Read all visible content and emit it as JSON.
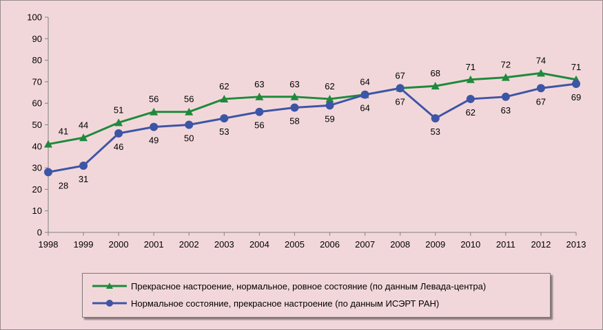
{
  "chart_data": {
    "type": "line",
    "x": [
      "1998",
      "1999",
      "2000",
      "2001",
      "2002",
      "2003",
      "2004",
      "2005",
      "2006",
      "2007",
      "2008",
      "2009",
      "2010",
      "2011",
      "2012",
      "2013"
    ],
    "ylim": [
      0,
      100
    ],
    "yticks": [
      "0",
      "10",
      "20",
      "30",
      "40",
      "50",
      "60",
      "70",
      "80",
      "90",
      "100"
    ],
    "grid": false,
    "legend_position": "bottom",
    "series": [
      {
        "name": "Прекрасное настроение, нормальное, ровное состояние (по данным Левада-центра)",
        "color": "#1e8a3c",
        "marker": "triangle",
        "values": [
          41,
          44,
          51,
          56,
          56,
          62,
          63,
          63,
          62,
          64,
          67,
          68,
          71,
          72,
          74,
          71
        ],
        "labels": [
          "41",
          "44",
          "51",
          "56",
          "56",
          "62",
          "63",
          "63",
          "62",
          "64",
          "67",
          "68",
          "71",
          "72",
          "74",
          "71"
        ],
        "label_position": "above"
      },
      {
        "name": "Нормальное состояние, прекрасное настроение (по данным ИСЭРТ РАН)",
        "color": "#3d55a6",
        "marker": "circle",
        "values": [
          28,
          31,
          46,
          49,
          50,
          53,
          56,
          58,
          59,
          64,
          67,
          53,
          62,
          63,
          67,
          69
        ],
        "labels": [
          "28",
          "31",
          "46",
          "49",
          "50",
          "53",
          "56",
          "58",
          "59",
          "64",
          "67",
          "53",
          "62",
          "63",
          "67",
          "69"
        ],
        "label_position": "below"
      }
    ]
  }
}
